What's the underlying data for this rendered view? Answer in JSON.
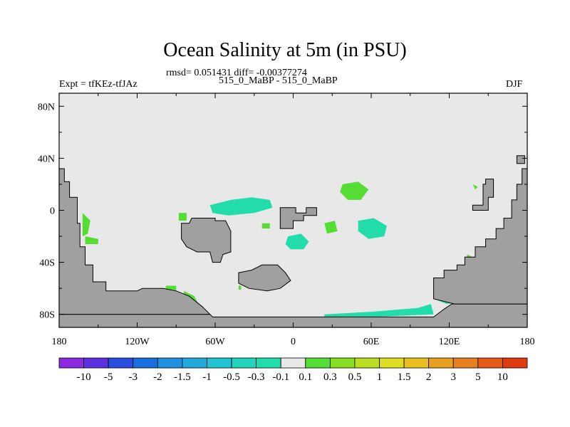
{
  "title": "Ocean Salinity at 5m (in PSU)",
  "stats": "rmsd= 0.051431 diff= -0.00377274",
  "left_label": "Expt = tfKEz-tfJAz",
  "center_label": "515_0_MaBP - 515_0_MaBP",
  "right_label": "DJF",
  "colors": {
    "land": "#a0a0a0",
    "ocean_neutral": "#e8e8e8",
    "pos_0_1": "#55dd33",
    "neg_0_3": "#22ddaa"
  },
  "chart_data": {
    "type": "heatmap",
    "projection": "cylindrical equidistant",
    "lon_range": [
      -180,
      180
    ],
    "lat_range": [
      -90,
      90
    ],
    "x_ticks": [
      "180",
      "120W",
      "60W",
      "0",
      "60E",
      "120E",
      "180"
    ],
    "x_tick_values": [
      -180,
      -120,
      -60,
      0,
      60,
      120,
      180
    ],
    "y_ticks": [
      "80N",
      "40N",
      "0",
      "40S",
      "80S"
    ],
    "y_tick_values": [
      80,
      40,
      0,
      -40,
      -80
    ],
    "colorbar": {
      "labels": [
        "-10",
        "-5",
        "-3",
        "-2",
        "-1.5",
        "-1",
        "-0.5",
        "-0.3",
        "-0.1",
        "0.1",
        "0.3",
        "0.5",
        "1",
        "1.5",
        "2",
        "3",
        "5",
        "10"
      ],
      "colors": [
        "#8a2be2",
        "#5a30e0",
        "#2a4de0",
        "#1a6fe0",
        "#1f90e0",
        "#22aadd",
        "#22c4d4",
        "#22d4bb",
        "#22ddaa",
        "#e8e8e8",
        "#55dd33",
        "#88dd22",
        "#bbdd22",
        "#dddd22",
        "#e8c020",
        "#e8a020",
        "#e88020",
        "#e65a15",
        "#e03a10"
      ]
    },
    "land_regions": [
      {
        "name": "west-edge",
        "points": [
          [
            -180,
            32
          ],
          [
            -176,
            32
          ],
          [
            -176,
            22
          ],
          [
            -172,
            22
          ],
          [
            -172,
            10
          ],
          [
            -166,
            10
          ],
          [
            -166,
            -10
          ],
          [
            -164,
            -10
          ],
          [
            -164,
            -28
          ],
          [
            -160,
            -28
          ],
          [
            -160,
            -42
          ],
          [
            -154,
            -42
          ],
          [
            -154,
            -55
          ],
          [
            -144,
            -55
          ],
          [
            -144,
            -62
          ],
          [
            -120,
            -62
          ],
          [
            -116,
            -60
          ],
          [
            -100,
            -60
          ],
          [
            -90,
            -62
          ],
          [
            -80,
            -66
          ],
          [
            -70,
            -74
          ],
          [
            -64,
            -80
          ],
          [
            -180,
            -80
          ]
        ]
      },
      {
        "name": "antarctica-base",
        "points": [
          [
            -180,
            -80
          ],
          [
            -64,
            -80
          ],
          [
            -62,
            -82
          ],
          [
            20,
            -82
          ],
          [
            108,
            -82
          ],
          [
            116,
            -76
          ],
          [
            122,
            -72
          ],
          [
            180,
            -72
          ],
          [
            180,
            -90
          ],
          [
            -180,
            -90
          ]
        ]
      },
      {
        "name": "east-edge",
        "points": [
          [
            180,
            32
          ],
          [
            176,
            32
          ],
          [
            176,
            20
          ],
          [
            172,
            20
          ],
          [
            172,
            8
          ],
          [
            168,
            8
          ],
          [
            168,
            -6
          ],
          [
            162,
            -6
          ],
          [
            162,
            -14
          ],
          [
            156,
            -14
          ],
          [
            156,
            -22
          ],
          [
            148,
            -22
          ],
          [
            148,
            -28
          ],
          [
            140,
            -28
          ],
          [
            140,
            -36
          ],
          [
            132,
            -36
          ],
          [
            132,
            -42
          ],
          [
            126,
            -42
          ],
          [
            126,
            -46
          ],
          [
            116,
            -46
          ],
          [
            116,
            -52
          ],
          [
            108,
            -52
          ],
          [
            108,
            -68
          ],
          [
            124,
            -72
          ],
          [
            180,
            -72
          ]
        ]
      },
      {
        "name": "east-island",
        "points": [
          [
            172,
            42
          ],
          [
            178,
            42
          ],
          [
            178,
            36
          ],
          [
            172,
            36
          ]
        ]
      },
      {
        "name": "east-pacific-arc",
        "points": [
          [
            148,
            24
          ],
          [
            154,
            24
          ],
          [
            154,
            10
          ],
          [
            150,
            10
          ],
          [
            150,
            0
          ],
          [
            138,
            0
          ],
          [
            138,
            4
          ],
          [
            146,
            4
          ],
          [
            146,
            20
          ],
          [
            148,
            20
          ]
        ]
      },
      {
        "name": "continent-a",
        "points": [
          [
            -60,
            -8
          ],
          [
            -52,
            -8
          ],
          [
            -48,
            -16
          ],
          [
            -48,
            -32
          ],
          [
            -54,
            -34
          ],
          [
            -56,
            -40
          ],
          [
            -62,
            -40
          ],
          [
            -64,
            -32
          ],
          [
            -74,
            -32
          ],
          [
            -82,
            -28
          ],
          [
            -86,
            -22
          ],
          [
            -86,
            -10
          ],
          [
            -80,
            -10
          ],
          [
            -78,
            -6
          ],
          [
            -60,
            -6
          ]
        ]
      },
      {
        "name": "continent-b",
        "points": [
          [
            -10,
            2
          ],
          [
            2,
            2
          ],
          [
            2,
            -2
          ],
          [
            10,
            -2
          ],
          [
            10,
            2
          ],
          [
            18,
            2
          ],
          [
            18,
            -4
          ],
          [
            8,
            -4
          ],
          [
            8,
            -8
          ],
          [
            0,
            -8
          ],
          [
            0,
            -14
          ],
          [
            -10,
            -14
          ]
        ]
      },
      {
        "name": "continent-c",
        "points": [
          [
            -24,
            -42
          ],
          [
            -12,
            -42
          ],
          [
            -6,
            -48
          ],
          [
            -2,
            -54
          ],
          [
            -10,
            -60
          ],
          [
            -20,
            -62
          ],
          [
            -34,
            -60
          ],
          [
            -42,
            -56
          ],
          [
            -42,
            -48
          ],
          [
            -32,
            -46
          ]
        ]
      }
    ],
    "anomaly_regions": [
      {
        "sign": "negative",
        "band": "-0.3 to -0.1",
        "points": [
          [
            -64,
            4
          ],
          [
            -48,
            8
          ],
          [
            -32,
            10
          ],
          [
            -18,
            8
          ],
          [
            -16,
            2
          ],
          [
            -30,
            -2
          ],
          [
            -50,
            -4
          ],
          [
            -62,
            -2
          ]
        ]
      },
      {
        "sign": "negative",
        "band": "-0.3 to -0.1",
        "points": [
          [
            50,
            -8
          ],
          [
            62,
            -6
          ],
          [
            72,
            -12
          ],
          [
            70,
            -20
          ],
          [
            58,
            -22
          ],
          [
            50,
            -16
          ]
        ]
      },
      {
        "sign": "negative",
        "band": "-0.3 to -0.1",
        "points": [
          [
            -4,
            -20
          ],
          [
            6,
            -18
          ],
          [
            12,
            -24
          ],
          [
            8,
            -30
          ],
          [
            -2,
            -30
          ],
          [
            -6,
            -26
          ]
        ]
      },
      {
        "sign": "negative",
        "band": "-0.3 to -0.1",
        "points": [
          [
            24,
            -80
          ],
          [
            60,
            -78
          ],
          [
            96,
            -75
          ],
          [
            106,
            -72
          ],
          [
            108,
            -80
          ],
          [
            60,
            -82
          ],
          [
            24,
            -82
          ]
        ]
      },
      {
        "sign": "negative",
        "band": "-0.3 to -0.1",
        "points": [
          [
            108,
            -60
          ],
          [
            118,
            -62
          ],
          [
            124,
            -66
          ],
          [
            130,
            -70
          ],
          [
            118,
            -72
          ],
          [
            108,
            -68
          ]
        ]
      },
      {
        "sign": "negative",
        "band": "-0.3 to -0.1",
        "points": [
          [
            -24,
            -50
          ],
          [
            -16,
            -50
          ],
          [
            -16,
            -56
          ],
          [
            -24,
            -56
          ]
        ]
      },
      {
        "sign": "positive",
        "band": "0.1 to 0.3",
        "points": [
          [
            38,
            20
          ],
          [
            50,
            22
          ],
          [
            58,
            16
          ],
          [
            52,
            8
          ],
          [
            42,
            8
          ],
          [
            36,
            14
          ]
        ]
      },
      {
        "sign": "positive",
        "band": "0.1 to 0.3",
        "points": [
          [
            -162,
            -2
          ],
          [
            -156,
            -8
          ],
          [
            -158,
            -18
          ],
          [
            -162,
            -20
          ]
        ]
      },
      {
        "sign": "positive",
        "band": "0.1 to 0.3",
        "points": [
          [
            -160,
            -20
          ],
          [
            -150,
            -22
          ],
          [
            -150,
            -26
          ],
          [
            -160,
            -26
          ]
        ]
      },
      {
        "sign": "positive",
        "band": "0.1 to 0.3",
        "points": [
          [
            -84,
            -62
          ],
          [
            -76,
            -66
          ],
          [
            -72,
            -74
          ],
          [
            -80,
            -74
          ],
          [
            -84,
            -70
          ]
        ]
      },
      {
        "sign": "positive",
        "band": "0.1 to 0.3",
        "points": [
          [
            -98,
            -58
          ],
          [
            -90,
            -58
          ],
          [
            -90,
            -62
          ],
          [
            -98,
            -62
          ]
        ]
      },
      {
        "sign": "positive",
        "band": "0.1 to 0.3",
        "points": [
          [
            -88,
            -2
          ],
          [
            -82,
            -2
          ],
          [
            -82,
            -8
          ],
          [
            -88,
            -8
          ]
        ]
      },
      {
        "sign": "positive",
        "band": "0.1 to 0.3",
        "points": [
          [
            24,
            -10
          ],
          [
            32,
            -8
          ],
          [
            34,
            -16
          ],
          [
            26,
            -18
          ]
        ]
      },
      {
        "sign": "positive",
        "band": "0.1 to 0.3",
        "points": [
          [
            -24,
            -10
          ],
          [
            -18,
            -10
          ],
          [
            -18,
            -14
          ],
          [
            -24,
            -14
          ]
        ]
      },
      {
        "sign": "positive",
        "band": "0.1 to 0.3",
        "points": [
          [
            -6,
            -8
          ],
          [
            -2,
            -8
          ],
          [
            -2,
            -12
          ],
          [
            -6,
            -12
          ]
        ]
      },
      {
        "sign": "positive",
        "band": "0.1 to 0.3",
        "points": [
          [
            134,
            -34
          ],
          [
            138,
            -36
          ],
          [
            136,
            -42
          ],
          [
            132,
            -40
          ]
        ]
      },
      {
        "sign": "positive",
        "band": "0.1 to 0.3",
        "points": [
          [
            138,
            20
          ],
          [
            142,
            18
          ],
          [
            140,
            16
          ]
        ]
      },
      {
        "sign": "positive",
        "band": "0.1 to 0.3",
        "points": [
          [
            -42,
            -58
          ],
          [
            -40,
            -58
          ],
          [
            -40,
            -61
          ],
          [
            -42,
            -61
          ]
        ]
      }
    ]
  }
}
